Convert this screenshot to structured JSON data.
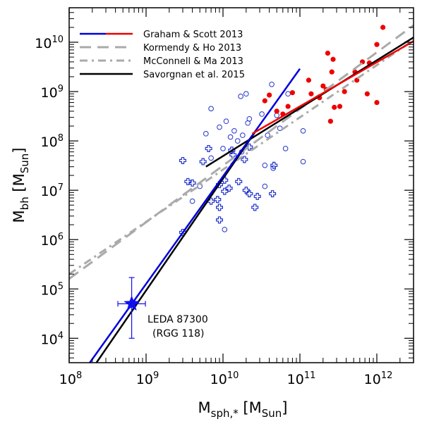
{
  "chart_data": {
    "type": "scatter",
    "x_log": true,
    "y_log": true,
    "xlim": [
      100000000.0,
      3000000000000.0
    ],
    "ylim": [
      3200.0,
      50000000000.0
    ],
    "grid": false,
    "legend_placement": "top-left",
    "xlabel": {
      "main": "M",
      "sub": "sph,*",
      "unit_open": "[M",
      "unit_sub": "Sun",
      "unit_close": "]"
    },
    "ylabel": {
      "main": "M",
      "sub": "bh",
      "unit_open": "[M",
      "unit_sub": "Sun",
      "unit_close": "]"
    },
    "x_ticks": [
      {
        "value": 100000000.0,
        "mant": "10",
        "exp": "8"
      },
      {
        "value": 1000000000.0,
        "mant": "10",
        "exp": "9"
      },
      {
        "value": 10000000000.0,
        "mant": "10",
        "exp": "10"
      },
      {
        "value": 100000000000.0,
        "mant": "10",
        "exp": "11"
      },
      {
        "value": 1000000000000.0,
        "mant": "10",
        "exp": "12"
      }
    ],
    "y_ticks": [
      {
        "value": 10000.0,
        "mant": "10",
        "exp": "4"
      },
      {
        "value": 100000.0,
        "mant": "10",
        "exp": "5"
      },
      {
        "value": 1000000.0,
        "mant": "10",
        "exp": "6"
      },
      {
        "value": 10000000.0,
        "mant": "10",
        "exp": "7"
      },
      {
        "value": 100000000.0,
        "mant": "10",
        "exp": "8"
      },
      {
        "value": 1000000000.0,
        "mant": "10",
        "exp": "9"
      },
      {
        "value": 10000000000.0,
        "mant": "10",
        "exp": "10"
      }
    ],
    "legend": [
      {
        "label": "Graham & Scott 2013",
        "style": "blue-red"
      },
      {
        "label": "Kormendy & Ho 2013",
        "style": "dashed-gray"
      },
      {
        "label": "McConnell & Ma 2013",
        "style": "dashdot-gray"
      },
      {
        "label": "Savorgnan et al. 2015",
        "style": "solid-black"
      }
    ],
    "colors": {
      "graham_blue": "#0000dd",
      "graham_red": "#ee0000",
      "kormendy": "#aaaaaa",
      "mcconnell": "#aaaaaa",
      "savorgnan": "#000000",
      "points_blue": "#2233cc",
      "points_red": "#ee0000",
      "highlight": "#1010ee"
    },
    "lines": [
      {
        "name": "Graham & Scott 2013",
        "part": "blue",
        "x": [
          180000000.0,
          100000000000.0
        ],
        "y": [
          3000.0,
          2900000000.0
        ]
      },
      {
        "name": "Graham & Scott 2013",
        "part": "red",
        "x": [
          24000000000.0,
          3000000000000.0
        ],
        "y": [
          140000000.0,
          10500000000.0
        ]
      },
      {
        "name": "Kormendy & Ho 2013",
        "x": [
          100000000.0,
          3000000000000.0
        ],
        "y": [
          160000.0,
          22000000000.0
        ]
      },
      {
        "name": "McConnell & Ma 2013",
        "x": [
          100000000.0,
          3000000000000.0
        ],
        "y": [
          200000.0,
          11000000000.0
        ]
      },
      {
        "name": "Savorgnan et al. 2015",
        "part": "blue-sequence",
        "x": [
          220000000.0,
          26000000000.0
        ],
        "y": [
          3000.0,
          150000000.0
        ]
      },
      {
        "name": "Savorgnan et al. 2015",
        "part": "red-sequence",
        "x": [
          6000000000.0,
          3000000000000.0
        ],
        "y": [
          30000000.0,
          12500000000.0
        ]
      }
    ],
    "series_open_circles": {
      "x": [
        7000000000.0,
        11000000000.0,
        17000000000.0,
        14000000000.0,
        18000000000.0,
        12500000000.0,
        15500000000.0,
        21000000000.0,
        9000000000.0,
        6000000000.0,
        20000000000.0,
        32000000000.0,
        43000000000.0,
        110000000000.0,
        35000000000.0,
        55000000000.0,
        45000000000.0,
        65000000000.0,
        50000000000.0,
        70000000000.0,
        38000000000.0,
        22000000000.0,
        10000000000.0,
        7000000000.0,
        5000000000.0,
        10500000000.0,
        35000000000.0,
        110000000000.0,
        4000000000.0,
        17500000000.0
      ],
      "y": [
        450000000.0,
        250000000.0,
        800000000.0,
        160000000.0,
        130000000.0,
        120000000.0,
        100000000.0,
        230000000.0,
        190000000.0,
        140000000.0,
        900000000.0,
        350000000.0,
        1400000000.0,
        160000000.0,
        32000000.0,
        180000000.0,
        28000000.0,
        70000000.0,
        330000000.0,
        900000000.0,
        130000000.0,
        280000000.0,
        70000000.0,
        45000000.0,
        12000000.0,
        1600000.0,
        12000000.0,
        38000000.0,
        6000000.0,
        60000000.0
      ]
    },
    "series_crosses": {
      "x": [
        3000000000.0,
        6500000000.0,
        5500000000.0,
        3500000000.0,
        4000000000.0,
        9000000000.0,
        10500000000.0,
        13000000000.0,
        13500000000.0,
        12000000000.0,
        16000000000.0,
        19000000000.0,
        22000000000.0,
        22000000000.0,
        28000000000.0,
        26000000000.0,
        46000000000.0,
        44000000000.0,
        10500000000.0,
        8500000000.0,
        7000000000.0,
        9000000000.0,
        9000000000.0,
        3000000000.0,
        20000000000.0
      ],
      "y": [
        40000000.0,
        70000000.0,
        38000000.0,
        15000000.0,
        14000000.0,
        13000000.0,
        16000000.0,
        65000000.0,
        52000000.0,
        11000000.0,
        15000000.0,
        42000000.0,
        75000000.0,
        8500000.0,
        7500000.0,
        4500000.0,
        32000000.0,
        8500000.0,
        9500000.0,
        6500000.0,
        6000000.0,
        4500000.0,
        2500000.0,
        1400000.0,
        10000000.0
      ]
    },
    "series_red_points": {
      "x": [
        35000000000.0,
        40000000000.0,
        50000000000.0,
        60000000000.0,
        70000000000.0,
        80000000000.0,
        130000000000.0,
        180000000000.0,
        220000000000.0,
        230000000000.0,
        260000000000.0,
        270000000000.0,
        280000000000.0,
        330000000000.0,
        380000000000.0,
        520000000000.0,
        550000000000.0,
        650000000000.0,
        750000000000.0,
        800000000000.0,
        1000000000000.0,
        1000000000000.0,
        1200000000000.0,
        250000000000.0,
        140000000000.0,
        200000000000.0
      ],
      "y": [
        650000000.0,
        850000000.0,
        400000000.0,
        350000000.0,
        500000000.0,
        950000000.0,
        1700000000.0,
        750000000.0,
        1100000000.0,
        6000000000.0,
        2500000000.0,
        4500000000.0,
        480000000.0,
        500000000.0,
        1000000000.0,
        2500000000.0,
        1700000000.0,
        4000000000.0,
        900000000.0,
        3800000000.0,
        600000000.0,
        9000000000.0,
        20000000000.0,
        250000000.0,
        900000000.0,
        1300000000.0
      ]
    },
    "highlight": {
      "x": 650000000.0,
      "y": 50000.0,
      "xerr": [
        430000000.0,
        980000000.0
      ],
      "yerr": [
        10000.0,
        170000.0
      ],
      "label_line1": "LEDA 87300",
      "label_line2": "(RGG 118)"
    }
  }
}
